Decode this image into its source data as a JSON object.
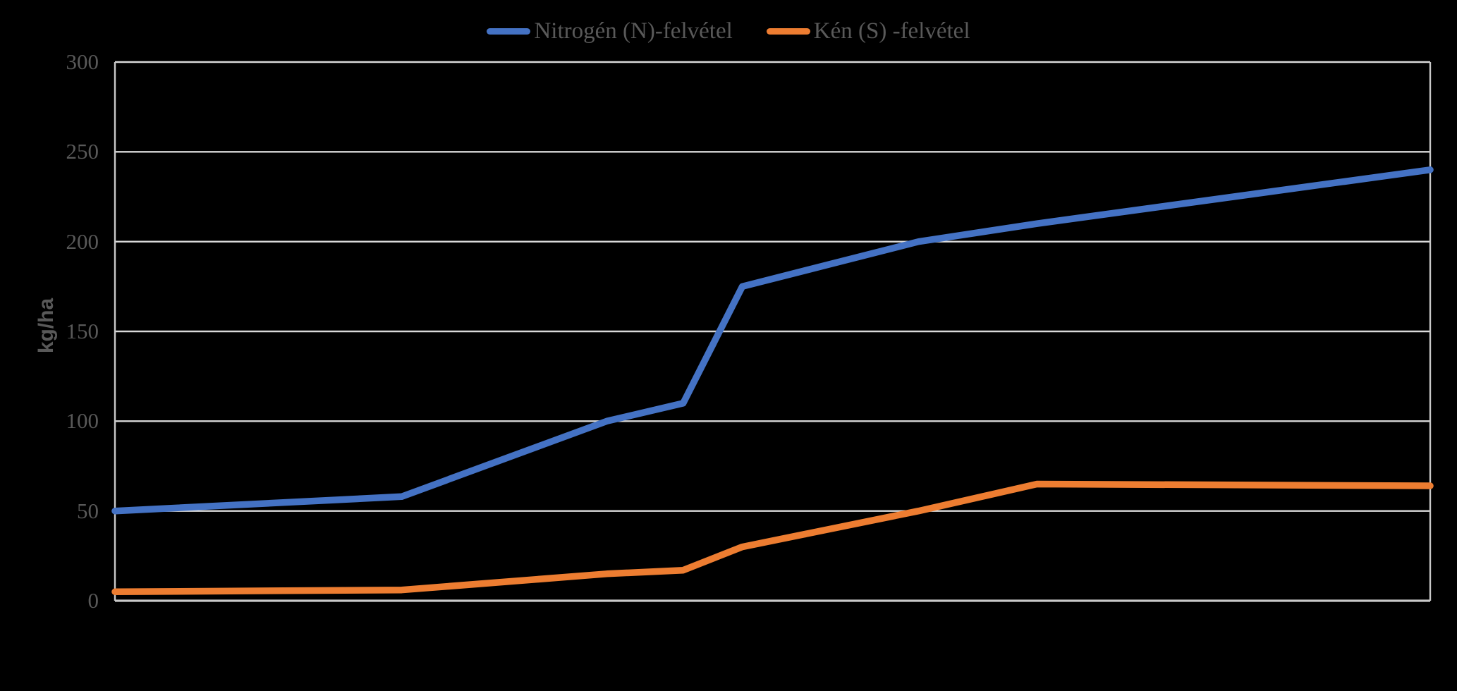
{
  "legend": {
    "items": [
      {
        "id": "nitrogen",
        "label": "Nitrogén (N)-felvétel",
        "color": "#4472C4"
      },
      {
        "id": "sulfur",
        "label": "Kén (S) -felvétel",
        "color": "#ED7D31"
      }
    ]
  },
  "y_axis": {
    "label": "kg/ha",
    "min": 0,
    "max": 300,
    "step": 50,
    "tick_labels": [
      "300",
      "250",
      "200",
      "150",
      "100",
      "50",
      "0"
    ]
  },
  "x_axis": {
    "tick_labels": []
  },
  "colors": {
    "background": "#000000",
    "gridline": "#D9D9D9",
    "axis_line": "#C9C9C9",
    "text": "#595959",
    "series_nitrogen": "#4472C4",
    "series_sulfur": "#ED7D31"
  },
  "chart_data": {
    "type": "line",
    "title": "",
    "xlabel": "",
    "ylabel": "kg/ha",
    "ylim": [
      0,
      300
    ],
    "grid": "horizontal",
    "legend_position": "top-center",
    "x_axis_labels_visible": false,
    "note": "x given as fraction of plot width (x-axis is unlabeled in the image); y in kg/ha",
    "series": [
      {
        "name": "Nitrogén (N)-felvétel",
        "color": "#4472C4",
        "points": [
          {
            "x": 0.0,
            "y": 50
          },
          {
            "x": 0.218,
            "y": 58
          },
          {
            "x": 0.374,
            "y": 100
          },
          {
            "x": 0.432,
            "y": 110
          },
          {
            "x": 0.477,
            "y": 175
          },
          {
            "x": 0.611,
            "y": 200
          },
          {
            "x": 0.701,
            "y": 210
          },
          {
            "x": 1.0,
            "y": 240
          }
        ]
      },
      {
        "name": "Kén (S) -felvétel",
        "color": "#ED7D31",
        "points": [
          {
            "x": 0.0,
            "y": 5
          },
          {
            "x": 0.218,
            "y": 6
          },
          {
            "x": 0.374,
            "y": 15
          },
          {
            "x": 0.432,
            "y": 17
          },
          {
            "x": 0.477,
            "y": 30
          },
          {
            "x": 0.611,
            "y": 50
          },
          {
            "x": 0.701,
            "y": 65
          },
          {
            "x": 1.0,
            "y": 64
          }
        ]
      }
    ]
  }
}
